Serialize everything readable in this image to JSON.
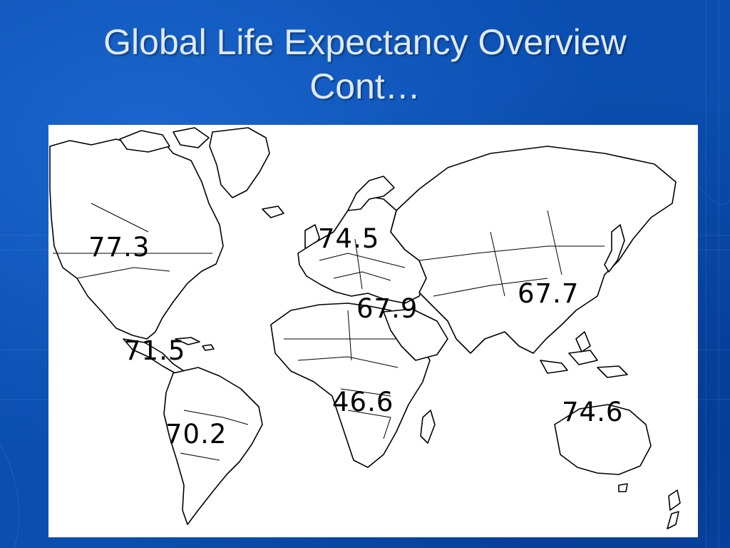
{
  "slide": {
    "title_line1": "Global Life Expectancy Overview",
    "title_line2": "Cont…"
  },
  "map": {
    "type": "world political outline map",
    "life_expectancy_labels": {
      "north_america": "77.3",
      "europe": "74.5",
      "east_asia": "67.7",
      "middle_east": "67.9",
      "central_america_caribbean": "71.5",
      "sub_saharan_africa": "46.6",
      "oceania_southeast_asia": "74.6",
      "south_america": "70.2"
    }
  },
  "colors": {
    "background": "#0a4fb0",
    "title_text": "#dfe9f7",
    "map_fill": "#ffffff",
    "outline": "#000000"
  }
}
